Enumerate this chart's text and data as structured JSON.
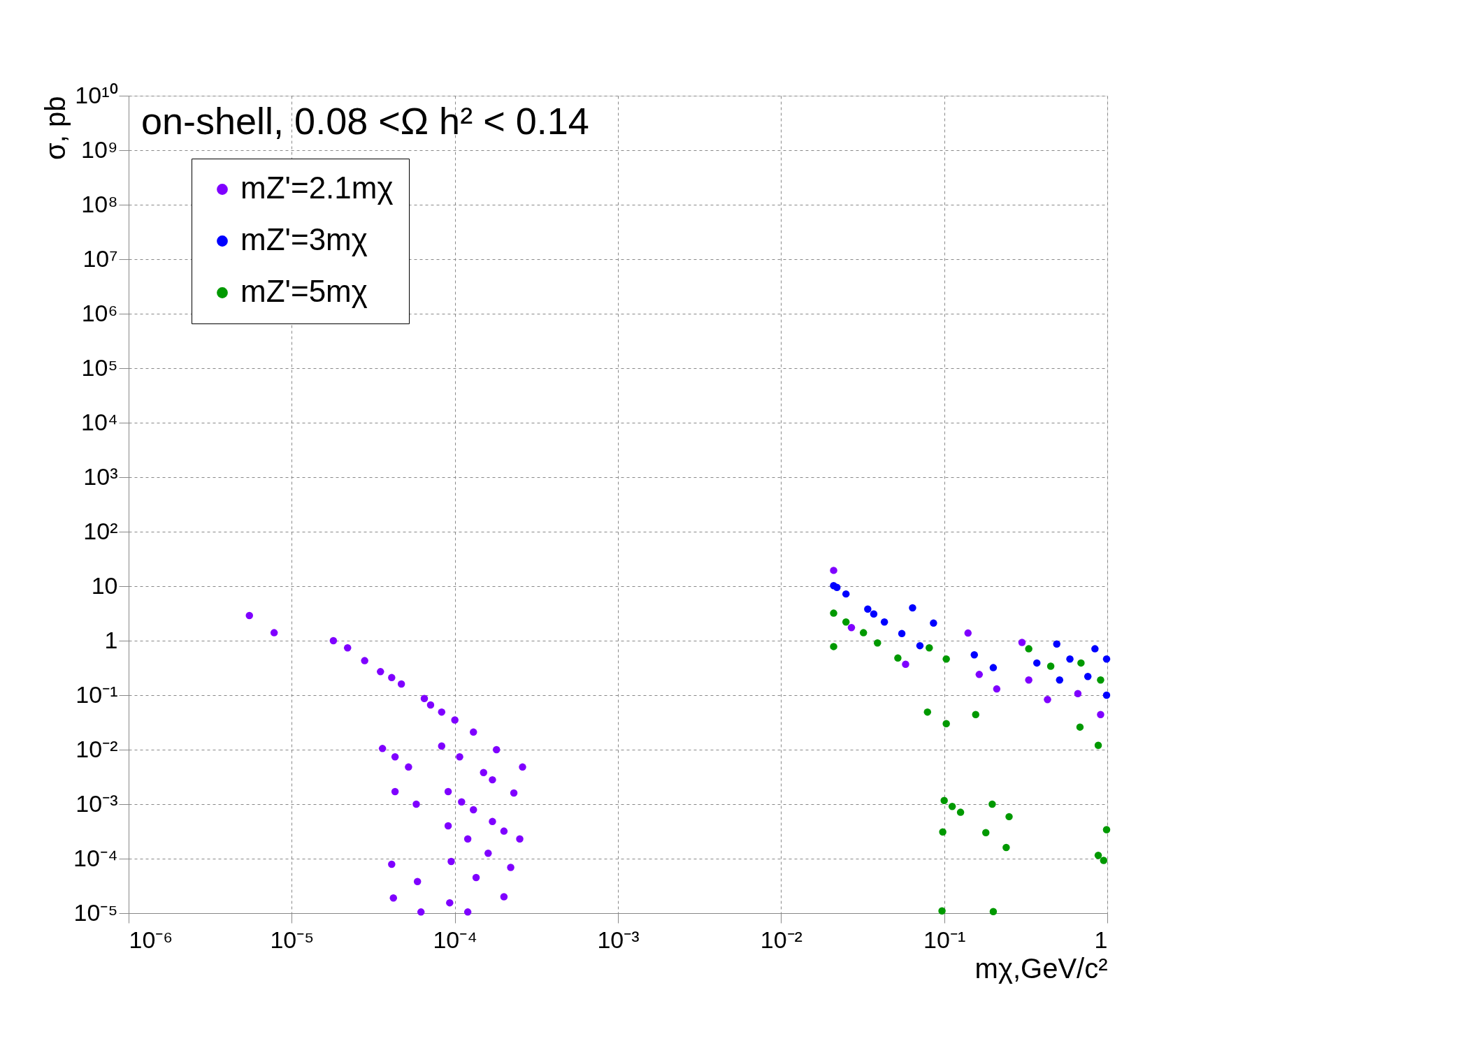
{
  "chart_data": {
    "type": "scatter",
    "title": "on-shell, 0.08 <Ω h² < 0.14",
    "xlabel": "mχ,GeV/c²",
    "ylabel": "σ, pb",
    "log": "xy",
    "grid": true,
    "legend": "top left",
    "marker": "circle",
    "xlim": [
      1e-06,
      1
    ],
    "ylim": [
      1e-05,
      10000000000.0
    ],
    "xticks": [
      {
        "value": 1e-06,
        "label": "10⁻⁶"
      },
      {
        "value": 1e-05,
        "label": "10⁻⁵"
      },
      {
        "value": 0.0001,
        "label": "10⁻⁴"
      },
      {
        "value": 0.001,
        "label": "10⁻³"
      },
      {
        "value": 0.01,
        "label": "10⁻²"
      },
      {
        "value": 0.1,
        "label": "10⁻¹"
      },
      1
    ],
    "yticks": [
      {
        "value": 1e-05,
        "label": "10⁻⁵"
      },
      {
        "value": 0.0001,
        "label": "10⁻⁴"
      },
      {
        "value": 0.001,
        "label": "10⁻³"
      },
      {
        "value": 0.01,
        "label": "10⁻²"
      },
      {
        "value": 0.1,
        "label": "10⁻¹"
      },
      1,
      10,
      {
        "value": 100.0,
        "label": "10²"
      },
      {
        "value": 1000.0,
        "label": "10³"
      },
      {
        "value": 10000.0,
        "label": "10⁴"
      },
      {
        "value": 100000.0,
        "label": "10⁵"
      },
      {
        "value": 1000000.0,
        "label": "10⁶"
      },
      {
        "value": 10000000.0,
        "label": "10⁷"
      },
      {
        "value": 100000000.0,
        "label": "10⁸"
      },
      {
        "value": 1000000000.0,
        "label": "10⁹"
      },
      {
        "value": 10000000000.0,
        "label": "10¹⁰"
      }
    ],
    "series": [
      {
        "name": "mZ'=2.1mχ",
        "color": "#7f00ff",
        "x": [
          5.5e-06,
          7.8e-06,
          1.8e-05,
          2.2e-05,
          2.8e-05,
          3.5e-05,
          4.1e-05,
          4.7e-05,
          6.5e-05,
          7.1e-05,
          8.3e-05,
          0.0001,
          0.00013,
          0.00018,
          0.00026,
          3.6e-05,
          4.3e-05,
          5.2e-05,
          8.3e-05,
          0.000107,
          0.00015,
          0.00017,
          0.00023,
          4.3e-05,
          5.8e-05,
          9.1e-05,
          0.00011,
          0.00013,
          0.00017,
          0.0002,
          0.00025,
          9.1e-05,
          0.00012,
          0.00016,
          0.00022,
          4.1e-05,
          5.9e-05,
          9.5e-05,
          0.000135,
          0.0002,
          4.2e-05,
          6.2e-05,
          9.3e-05,
          0.00012,
          0.021,
          0.027,
          0.058,
          0.14,
          0.164,
          0.21,
          0.3,
          0.33,
          0.43,
          0.66,
          0.91
        ],
        "values": [
          2.9,
          1.4,
          1.0,
          0.74,
          0.43,
          0.27,
          0.21,
          0.16,
          0.087,
          0.066,
          0.049,
          0.035,
          0.021,
          0.01,
          0.0048,
          0.0105,
          0.0074,
          0.0048,
          0.0117,
          0.0074,
          0.0038,
          0.0028,
          0.0016,
          0.0017,
          0.001,
          0.0017,
          0.0011,
          0.00079,
          0.00048,
          0.00032,
          0.00023,
          0.0004,
          0.00023,
          0.000126,
          6.9e-05,
          7.9e-05,
          3.8e-05,
          8.9e-05,
          4.5e-05,
          2e-05,
          1.9e-05,
          1.05e-05,
          1.55e-05,
          1.05e-05,
          19.5,
          1.74,
          0.37,
          1.38,
          0.24,
          0.13,
          0.93,
          0.19,
          0.083,
          0.107,
          0.044
        ]
      },
      {
        "name": "mZ'=3mχ",
        "color": "#0000ff",
        "x": [
          0.021,
          0.022,
          0.025,
          0.034,
          0.037,
          0.043,
          0.055,
          0.071,
          0.064,
          0.086,
          0.153,
          0.2,
          0.37,
          0.51,
          0.49,
          0.59,
          0.76,
          0.99,
          0.84,
          0.99
        ],
        "values": [
          10.2,
          9.5,
          7.2,
          3.8,
          3.1,
          2.2,
          1.35,
          0.81,
          4.0,
          2.1,
          0.55,
          0.32,
          0.39,
          0.19,
          0.87,
          0.46,
          0.22,
          0.1,
          0.71,
          0.46
        ]
      },
      {
        "name": "mZ'=5mχ",
        "color": "#009900",
        "x": [
          0.021,
          0.021,
          0.025,
          0.032,
          0.039,
          0.052,
          0.081,
          0.103,
          0.079,
          0.103,
          0.156,
          0.33,
          0.45,
          0.69,
          0.91,
          0.68,
          0.88,
          0.1,
          0.112,
          0.126,
          0.098,
          0.197,
          0.25,
          0.18,
          0.24,
          0.99,
          0.88,
          0.95,
          0.097,
          0.2
        ],
        "values": [
          3.2,
          0.78,
          2.2,
          1.4,
          0.91,
          0.48,
          0.74,
          0.46,
          0.049,
          0.03,
          0.044,
          0.71,
          0.34,
          0.39,
          0.19,
          0.026,
          0.012,
          0.00117,
          0.00091,
          0.00071,
          0.00031,
          0.001,
          0.00059,
          0.0003,
          0.00016,
          0.00034,
          0.000115,
          9.3e-05,
          1.1e-05,
          1.07e-05
        ]
      }
    ]
  }
}
